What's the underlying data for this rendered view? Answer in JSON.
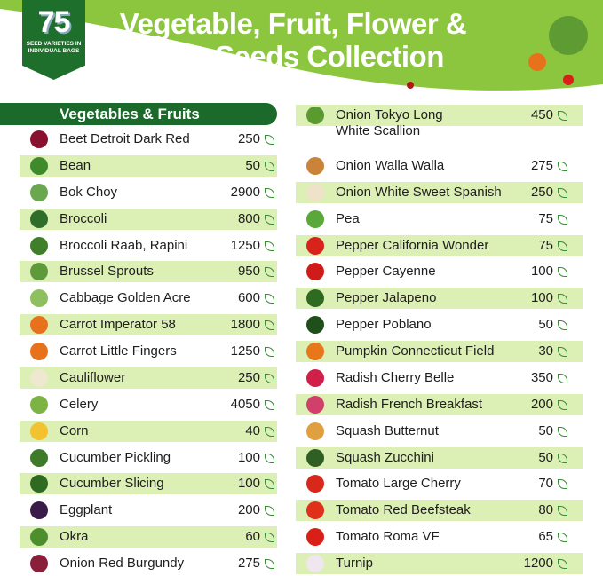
{
  "header": {
    "badge_number": "75",
    "badge_text": "SEED VARIETIES IN INDIVIDUAL BAGS",
    "title": "Vegetable, Fruit, Flower & Herb Seeds Collection"
  },
  "colors": {
    "hero": "#8cc63f",
    "dark_green": "#1b6a2b",
    "band": "#dcefb5",
    "leaf_icon": "#3a8a3a"
  },
  "left": {
    "heading": "Vegetables & Fruits",
    "items": [
      {
        "name": "Beet Detroit Dark Red",
        "count": "250",
        "icon": "beet-icon",
        "color": "#8a1030"
      },
      {
        "name": "Bean",
        "count": "50",
        "icon": "bean-icon",
        "color": "#3f8a2a"
      },
      {
        "name": "Bok Choy",
        "count": "2900",
        "icon": "bok-choy-icon",
        "color": "#6aa84f"
      },
      {
        "name": "Broccoli",
        "count": "800",
        "icon": "broccoli-icon",
        "color": "#2f6e2a"
      },
      {
        "name": "Broccoli Raab, Rapini",
        "count": "1250",
        "icon": "broccoli-raab-icon",
        "color": "#3f7f2a"
      },
      {
        "name": "Brussel Sprouts",
        "count": "950",
        "icon": "brussel-sprouts-icon",
        "color": "#5f9a3a"
      },
      {
        "name": "Cabbage Golden Acre",
        "count": "600",
        "icon": "cabbage-icon",
        "color": "#8fc060"
      },
      {
        "name": "Carrot Imperator 58",
        "count": "1800",
        "icon": "carrot-icon",
        "color": "#e8711c"
      },
      {
        "name": "Carrot Little Fingers",
        "count": "1250",
        "icon": "carrot-icon",
        "color": "#e8711c"
      },
      {
        "name": "Cauliflower",
        "count": "250",
        "icon": "cauliflower-icon",
        "color": "#efe8d0"
      },
      {
        "name": "Celery",
        "count": "4050",
        "icon": "celery-icon",
        "color": "#7cb342"
      },
      {
        "name": "Corn",
        "count": "40",
        "icon": "corn-icon",
        "color": "#f2c230"
      },
      {
        "name": "Cucumber Pickling",
        "count": "100",
        "icon": "cucumber-icon",
        "color": "#3d7a2a"
      },
      {
        "name": "Cucumber Slicing",
        "count": "100",
        "icon": "cucumber-icon",
        "color": "#2f6a22"
      },
      {
        "name": "Eggplant",
        "count": "200",
        "icon": "eggplant-icon",
        "color": "#3a1b4a"
      },
      {
        "name": "Okra",
        "count": "60",
        "icon": "okra-icon",
        "color": "#4c8f2c"
      },
      {
        "name": "Onion Red Burgundy",
        "count": "275",
        "icon": "red-onion-icon",
        "color": "#8a1f3a"
      }
    ]
  },
  "right": {
    "items": [
      {
        "name": "Onion Tokyo Long White Scallion",
        "count": "450",
        "icon": "scallion-icon",
        "color": "#5a9a30"
      },
      {
        "name": "Onion Walla Walla",
        "count": "275",
        "icon": "onion-icon",
        "color": "#c9843a"
      },
      {
        "name": "Onion White Sweet Spanish",
        "count": "250",
        "icon": "white-onion-icon",
        "color": "#eee2c8"
      },
      {
        "name": "Pea",
        "count": "75",
        "icon": "pea-icon",
        "color": "#5aa83a"
      },
      {
        "name": "Pepper California Wonder",
        "count": "75",
        "icon": "bell-pepper-icon",
        "color": "#d8231c"
      },
      {
        "name": "Pepper Cayenne",
        "count": "100",
        "icon": "cayenne-pepper-icon",
        "color": "#d01c18"
      },
      {
        "name": "Pepper Jalapeno",
        "count": "100",
        "icon": "jalapeno-icon",
        "color": "#2f6a22"
      },
      {
        "name": "Pepper Poblano",
        "count": "50",
        "icon": "poblano-icon",
        "color": "#1f4f1a"
      },
      {
        "name": "Pumpkin Connecticut Field",
        "count": "30",
        "icon": "pumpkin-icon",
        "color": "#e8761a"
      },
      {
        "name": "Radish Cherry Belle",
        "count": "350",
        "icon": "radish-icon",
        "color": "#d0204a"
      },
      {
        "name": "Radish French Breakfast",
        "count": "200",
        "icon": "radish-icon",
        "color": "#d0406a"
      },
      {
        "name": "Squash Butternut",
        "count": "50",
        "icon": "butternut-squash-icon",
        "color": "#e0a040"
      },
      {
        "name": "Squash Zucchini",
        "count": "50",
        "icon": "zucchini-icon",
        "color": "#2f5f22"
      },
      {
        "name": "Tomato Large Cherry",
        "count": "70",
        "icon": "cherry-tomato-icon",
        "color": "#d8281c"
      },
      {
        "name": "Tomato Red Beefsteak",
        "count": "80",
        "icon": "tomato-icon",
        "color": "#e0301c"
      },
      {
        "name": "Tomato Roma VF",
        "count": "65",
        "icon": "roma-tomato-icon",
        "color": "#d82018"
      },
      {
        "name": "Turnip",
        "count": "1200",
        "icon": "turnip-icon",
        "color": "#efe6f0"
      }
    ]
  }
}
